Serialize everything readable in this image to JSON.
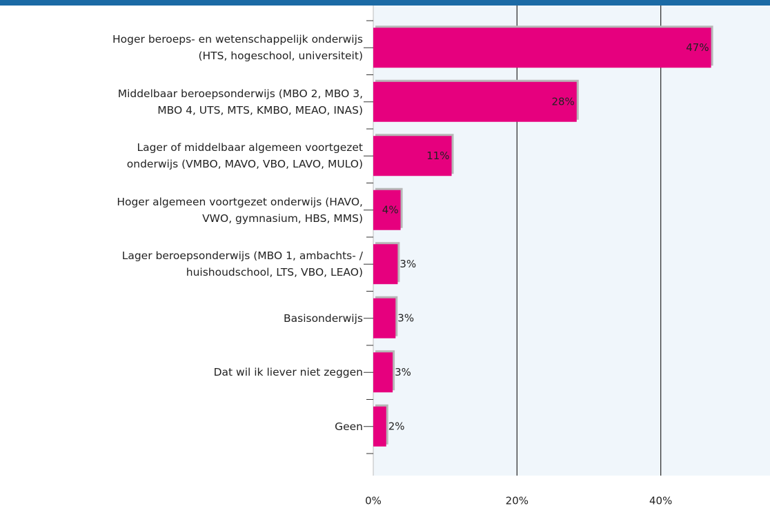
{
  "chart_data": {
    "type": "barh",
    "categories": [
      "Hoger beroeps- en wetenschappelijk onderwijs\n(HTS, hogeschool, universiteit)",
      "Middelbaar beroepsonderwijs (MBO 2, MBO 3,\nMBO 4, UTS, MTS, KMBO, MEAO, INAS)",
      "Lager of middelbaar algemeen voortgezet\nonderwijs (VMBO, MAVO, VBO, LAVO, MULO)",
      "Hoger algemeen voortgezet onderwijs (HAVO,\nVWO, gymnasium, HBS, MMS)",
      "Lager beroepsonderwijs (MBO 1, ambachts- /\nhuishoudschool, LTS, VBO, LEAO)",
      "Basisonderwijs",
      "Dat wil ik liever niet zeggen",
      "Geen"
    ],
    "values": [
      47,
      28.3,
      10.9,
      3.8,
      3.4,
      3.1,
      2.7,
      1.8
    ],
    "value_labels": [
      "47%",
      "28%",
      "11%",
      "4%",
      "3%",
      "3%",
      "3%",
      "2%"
    ],
    "color": "#e6007e",
    "xlim": [
      0,
      55.2
    ],
    "xticks": [
      {
        "value": 0,
        "label": "0%"
      },
      {
        "value": 20,
        "label": "20%"
      },
      {
        "value": 40,
        "label": "40%"
      }
    ],
    "grid": true
  }
}
